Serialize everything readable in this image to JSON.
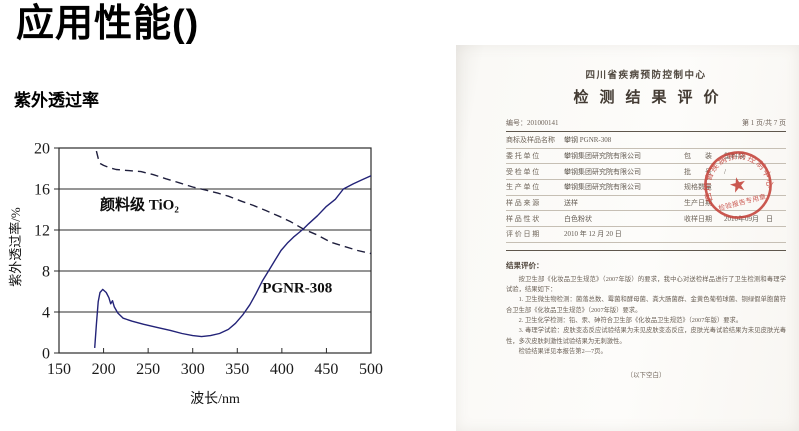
{
  "page": {
    "title": "应用性能()",
    "subtitle": "紫外透过率"
  },
  "chart_data": {
    "type": "line",
    "title": "",
    "xlabel": "波长/nm",
    "ylabel": "紫外透过率/%",
    "xlim": [
      150,
      500
    ],
    "ylim": [
      0,
      20
    ],
    "x_ticks": [
      150,
      200,
      250,
      300,
      350,
      400,
      450,
      500
    ],
    "y_ticks": [
      0,
      4,
      8,
      12,
      16,
      20
    ],
    "grid": "horizontal-only",
    "legend_position": "in-plot-annotations",
    "axis_color": "#2b2b2b",
    "series": [
      {
        "key": "tio2",
        "name": "颜料级 TiO₂",
        "style": "dashed",
        "color": "#1f1f3d",
        "label_xy": [
          196,
          14.0
        ],
        "points": [
          [
            192,
            19.7
          ],
          [
            194,
            19.0
          ],
          [
            196,
            18.5
          ],
          [
            200,
            18.3
          ],
          [
            206,
            18.1
          ],
          [
            214,
            17.9
          ],
          [
            228,
            17.8
          ],
          [
            242,
            17.7
          ],
          [
            256,
            17.4
          ],
          [
            270,
            17.0
          ],
          [
            285,
            16.6
          ],
          [
            300,
            16.2
          ],
          [
            314,
            15.9
          ],
          [
            328,
            15.6
          ],
          [
            340,
            15.3
          ],
          [
            355,
            14.8
          ],
          [
            368,
            14.4
          ],
          [
            382,
            13.9
          ],
          [
            398,
            13.3
          ],
          [
            410,
            12.8
          ],
          [
            424,
            12.1
          ],
          [
            440,
            11.5
          ],
          [
            455,
            10.8
          ],
          [
            470,
            10.4
          ],
          [
            485,
            10.0
          ],
          [
            500,
            9.7
          ]
        ]
      },
      {
        "key": "pgnr308",
        "name": "PGNR-308",
        "style": "solid",
        "color": "#232378",
        "label_xy": [
          378,
          5.9
        ],
        "points": [
          [
            190,
            0.5
          ],
          [
            192,
            2.8
          ],
          [
            194,
            5.0
          ],
          [
            196,
            5.9
          ],
          [
            199,
            6.2
          ],
          [
            203,
            5.9
          ],
          [
            206,
            5.4
          ],
          [
            208,
            4.8
          ],
          [
            210,
            5.1
          ],
          [
            212,
            4.5
          ],
          [
            216,
            3.9
          ],
          [
            222,
            3.4
          ],
          [
            232,
            3.1
          ],
          [
            245,
            2.8
          ],
          [
            260,
            2.5
          ],
          [
            275,
            2.2
          ],
          [
            288,
            1.9
          ],
          [
            300,
            1.7
          ],
          [
            310,
            1.6
          ],
          [
            320,
            1.7
          ],
          [
            330,
            1.9
          ],
          [
            340,
            2.3
          ],
          [
            348,
            2.9
          ],
          [
            356,
            3.7
          ],
          [
            364,
            4.7
          ],
          [
            371,
            5.8
          ],
          [
            378,
            7.0
          ],
          [
            385,
            8.0
          ],
          [
            392,
            9.0
          ],
          [
            399,
            10.0
          ],
          [
            406,
            10.7
          ],
          [
            413,
            11.3
          ],
          [
            420,
            11.8
          ],
          [
            424,
            12.1
          ],
          [
            430,
            12.6
          ],
          [
            440,
            13.4
          ],
          [
            450,
            14.3
          ],
          [
            460,
            15.0
          ],
          [
            469,
            16.0
          ],
          [
            480,
            16.5
          ],
          [
            490,
            16.9
          ],
          [
            500,
            17.3
          ]
        ]
      }
    ]
  },
  "document": {
    "org": "四川省疾病预防控制中心",
    "title": "检测结果评价",
    "serial_label": "编号：",
    "serial": "201000141",
    "page_no": "第 1 页/共 7 页",
    "rows": [
      {
        "l": "商标及样品名称",
        "v": "攀钢 PGNR-308",
        "l2": "",
        "v2": ""
      },
      {
        "l": "委 托 单 位",
        "v": "攀钢集团研究院有限公司",
        "l2": "包　　装",
        "v2": "塑料袋"
      },
      {
        "l": "受 检 单 位",
        "v": "攀钢集团研究院有限公司",
        "l2": "批　　号",
        "v2": "/"
      },
      {
        "l": "生 产 单 位",
        "v": "攀钢集团研究院有限公司",
        "l2": "规格数量",
        "v2": ""
      },
      {
        "l": "样 品 来 源",
        "v": "送样",
        "l2": "生产日期",
        "v2": ""
      },
      {
        "l": "样 品 性 状",
        "v": "白色粉状",
        "l2": "收样日期",
        "v2": "2010年09月　日"
      },
      {
        "l": "评 价 日 期",
        "v": "2010 年 12 月 20 日",
        "l2": "",
        "v2": ""
      }
    ],
    "result_heading": "结果评价：",
    "paragraphs": [
      "按卫生部《化妆品卫生规范》（2007年版）的要求，我中心对送检样品进行了卫生检测和毒理学试验，结果如下：",
      "1. 卫生微生物检测：菌落总数、霉菌和酵母菌、粪大肠菌群、金黄色葡萄球菌、铜绿假单胞菌符合卫生部《化妆品卫生规范》（2007年版）要求。",
      "2. 卫生化学检测：铅、汞、砷符合卫生部《化妆品卫生规范》（2007年版）要求。",
      "3. 毒理学试验：皮肤变态反应试验结果为未见皮肤变态反应，皮肤光毒试验结果为未见皮肤光毒性，多次皮肤刺激性试验结果为无刺激性。",
      "检验结果详见本报告第2—7页。"
    ],
    "footer_note": "（以下空白）",
    "stamp": {
      "ring": "四川省疾病预防控制中心",
      "banner": "检验报告专用章",
      "color": "#c4423a"
    }
  }
}
